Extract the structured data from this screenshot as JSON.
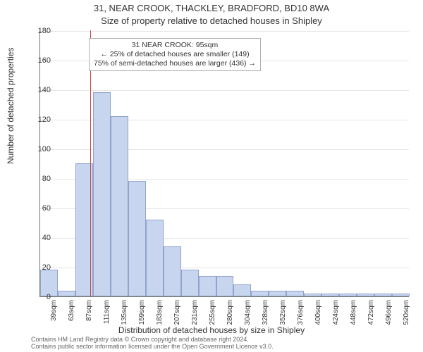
{
  "titles": {
    "line1": "31, NEAR CROOK, THACKLEY, BRADFORD, BD10 8WA",
    "line2": "Size of property relative to detached houses in Shipley"
  },
  "ylabel": "Number of detached properties",
  "xlabel": "Distribution of detached houses by size in Shipley",
  "footer": {
    "l1": "Contains HM Land Registry data © Crown copyright and database right 2024.",
    "l2": "Contains public sector information licensed under the Open Government Licence v3.0."
  },
  "chart": {
    "type": "histogram",
    "ylim": [
      0,
      180
    ],
    "ytick_step": 20,
    "background_color": "#ffffff",
    "grid_color": "#e6e6e6",
    "axis_color": "#777777",
    "bar_fill": "#c8d5ef",
    "bar_border": "#8fa3cc",
    "marker_color": "#d04040",
    "marker_x_value": 95,
    "bin_start": 27,
    "bin_width": 24,
    "bin_count": 21,
    "x_tick_labels": [
      "39sqm",
      "63sqm",
      "87sqm",
      "111sqm",
      "135sqm",
      "159sqm",
      "183sqm",
      "207sqm",
      "231sqm",
      "255sqm",
      "280sqm",
      "304sqm",
      "328sqm",
      "352sqm",
      "376sqm",
      "400sqm",
      "424sqm",
      "448sqm",
      "472sqm",
      "496sqm",
      "520sqm"
    ],
    "values": [
      18,
      4,
      90,
      138,
      122,
      78,
      52,
      34,
      18,
      14,
      14,
      8,
      4,
      4,
      4,
      2,
      2,
      2,
      2,
      2,
      2
    ]
  },
  "annotation": {
    "l1": "31 NEAR CROOK: 95sqm",
    "l2": "← 25% of detached houses are smaller (149)",
    "l3": "75% of semi-detached houses are larger (436) →",
    "box_border": "#b0b0b0",
    "box_bg": "#ffffff",
    "fontsize": 10.5
  }
}
